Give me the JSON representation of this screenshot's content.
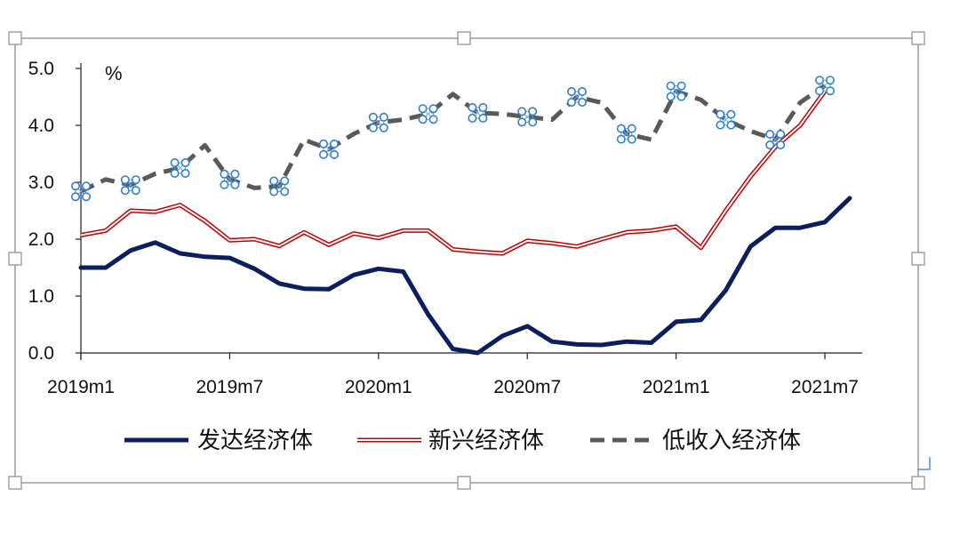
{
  "chart_data": {
    "type": "line",
    "unit_label": "%",
    "categories": [
      "2019m1",
      "2019m2",
      "2019m3",
      "2019m4",
      "2019m5",
      "2019m6",
      "2019m7",
      "2019m8",
      "2019m9",
      "2019m10",
      "2019m11",
      "2019m12",
      "2020m1",
      "2020m2",
      "2020m3",
      "2020m4",
      "2020m5",
      "2020m6",
      "2020m7",
      "2020m8",
      "2020m9",
      "2020m10",
      "2020m11",
      "2020m12",
      "2021m1",
      "2021m2",
      "2021m3",
      "2021m4",
      "2021m5",
      "2021m6",
      "2021m7",
      "2021m8"
    ],
    "x_tick_labels": [
      "2019m1",
      "2019m7",
      "2020m1",
      "2020m7",
      "2021m1",
      "2021m7"
    ],
    "y_tick_labels": [
      "0.0",
      "1.0",
      "2.0",
      "3.0",
      "4.0",
      "5.0"
    ],
    "ylim": [
      0,
      5
    ],
    "legend_position": "bottom",
    "grid": false,
    "series": [
      {
        "name": "发达经济体",
        "color": "#0b1f5e",
        "style": "solid-thick",
        "values": [
          1.5,
          1.5,
          1.8,
          1.94,
          1.75,
          1.69,
          1.67,
          1.48,
          1.22,
          1.13,
          1.12,
          1.37,
          1.48,
          1.43,
          0.68,
          0.07,
          0.0,
          0.3,
          0.47,
          0.2,
          0.15,
          0.14,
          0.2,
          0.18,
          0.55,
          0.58,
          1.1,
          1.87,
          2.2,
          2.2,
          2.3,
          2.72
        ]
      },
      {
        "name": "新兴经济体",
        "color": "#c00000",
        "style": "double-line",
        "values": [
          2.07,
          2.15,
          2.5,
          2.48,
          2.6,
          2.32,
          1.98,
          2.0,
          1.88,
          2.12,
          1.9,
          2.1,
          2.02,
          2.15,
          2.15,
          1.82,
          1.78,
          1.75,
          1.97,
          1.93,
          1.87,
          2.0,
          2.12,
          2.15,
          2.22,
          1.85,
          2.5,
          3.1,
          3.62,
          4.0,
          4.6,
          null
        ]
      },
      {
        "name": "低收入经济体",
        "color": "#595959",
        "style": "dashed",
        "values": [
          2.84,
          3.05,
          2.95,
          3.15,
          3.25,
          3.65,
          3.05,
          2.9,
          2.93,
          3.75,
          3.58,
          3.85,
          4.05,
          4.1,
          4.2,
          4.55,
          4.22,
          4.2,
          4.15,
          4.1,
          4.5,
          4.4,
          3.85,
          3.75,
          4.6,
          4.45,
          4.1,
          3.9,
          3.75,
          4.4,
          4.7,
          null
        ]
      }
    ]
  }
}
